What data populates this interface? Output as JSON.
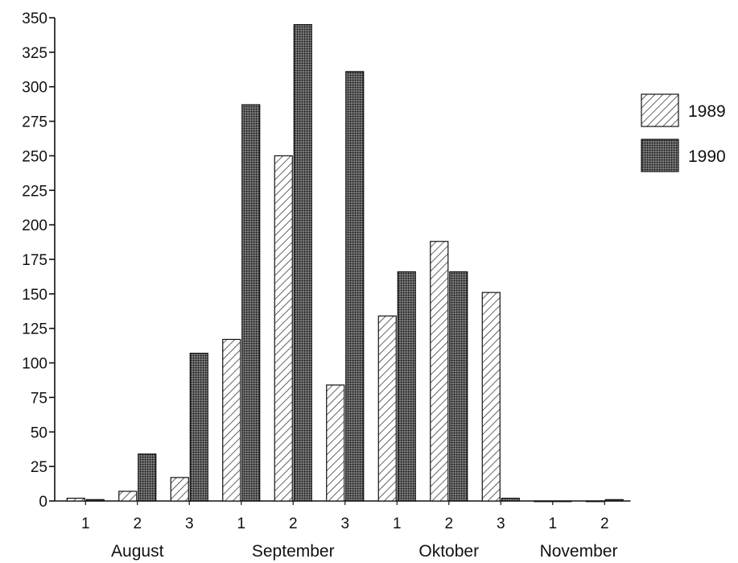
{
  "chart_data": {
    "type": "bar",
    "categories": [
      {
        "period": "1",
        "month": "August"
      },
      {
        "period": "2",
        "month": "August"
      },
      {
        "period": "3",
        "month": "August"
      },
      {
        "period": "1",
        "month": "September"
      },
      {
        "period": "2",
        "month": "September"
      },
      {
        "period": "3",
        "month": "September"
      },
      {
        "period": "1",
        "month": "Oktober"
      },
      {
        "period": "2",
        "month": "Oktober"
      },
      {
        "period": "3",
        "month": "Oktober"
      },
      {
        "period": "1",
        "month": "November"
      },
      {
        "period": "2",
        "month": "November"
      }
    ],
    "months": [
      "August",
      "September",
      "Oktober",
      "November"
    ],
    "series": [
      {
        "name": "1989",
        "pattern": "hatched",
        "values": [
          2,
          7,
          17,
          117,
          250,
          84,
          134,
          188,
          151,
          0,
          0
        ]
      },
      {
        "name": "1990",
        "pattern": "dotted-dark",
        "values": [
          1,
          34,
          107,
          287,
          345,
          311,
          166,
          166,
          2,
          0,
          1
        ]
      }
    ],
    "ylim": [
      0,
      350
    ],
    "yticks": [
      0,
      25,
      50,
      75,
      100,
      125,
      150,
      175,
      200,
      225,
      250,
      275,
      300,
      325,
      350
    ],
    "legend_position": "right",
    "grid": false,
    "title": "",
    "xlabel": "",
    "ylabel": ""
  }
}
